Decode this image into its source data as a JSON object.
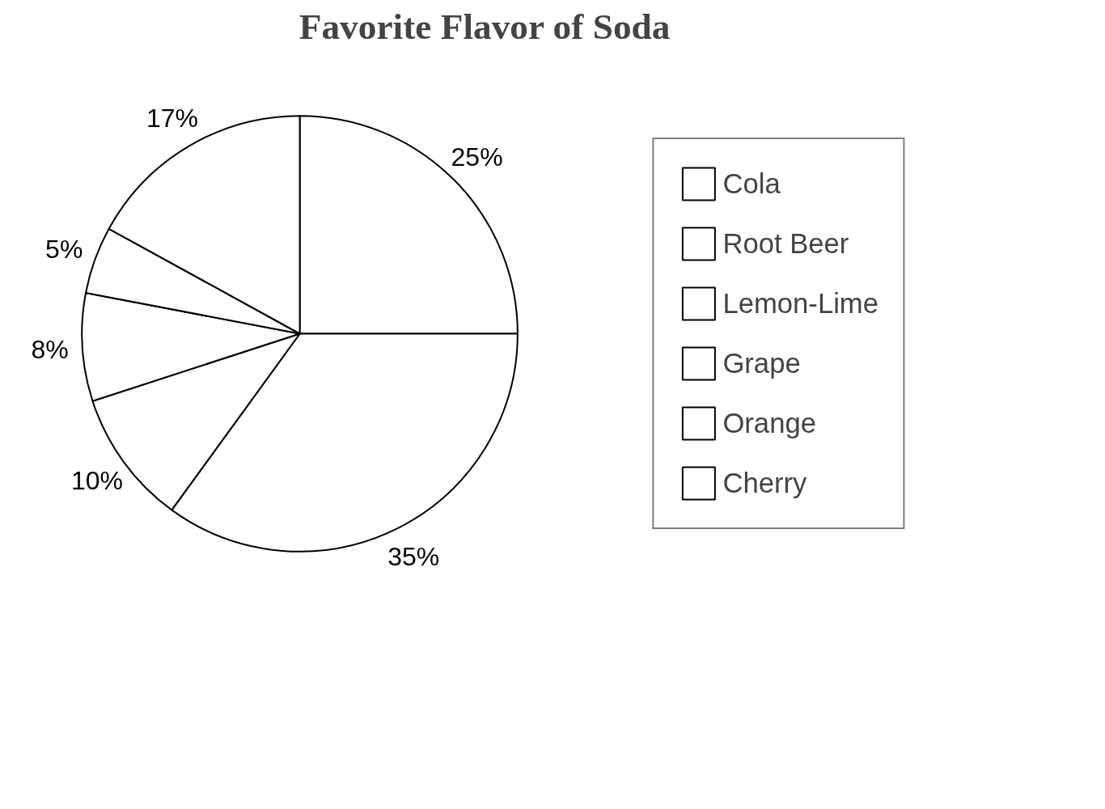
{
  "chart_data": {
    "type": "pie",
    "title": "Favorite Flavor of Soda",
    "categories": [
      "Cola",
      "Root Beer",
      "Lemon-Lime",
      "Grape",
      "Orange",
      "Cherry"
    ],
    "values": [
      25,
      35,
      10,
      8,
      5,
      17
    ],
    "colors": [
      "#ffffff",
      "#ffffff",
      "#ffffff",
      "#ffffff",
      "#ffffff",
      "#ffffff"
    ],
    "value_labels": [
      "25%",
      "35%",
      "10%",
      "8%",
      "5%",
      "17%"
    ],
    "legend": "right"
  }
}
